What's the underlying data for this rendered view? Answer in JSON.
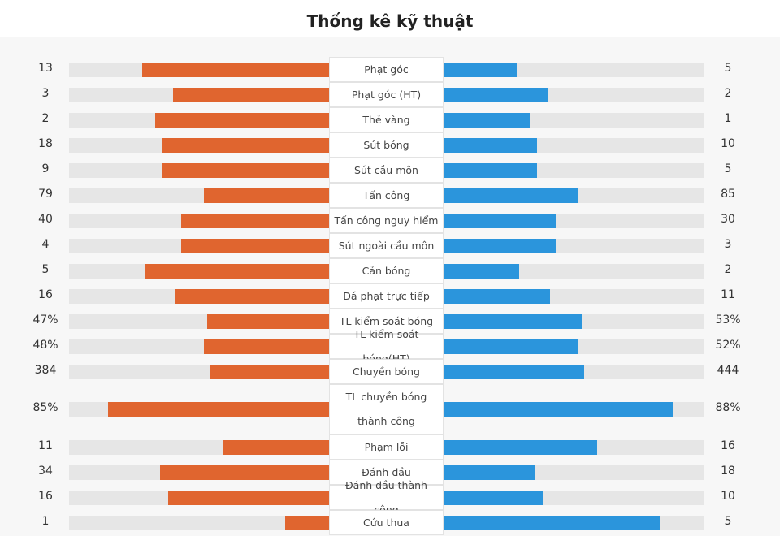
{
  "title": "Thống kê kỹ thuật",
  "colors": {
    "home_bar": "#e0652f",
    "away_bar": "#2b95dc",
    "track": "#e6e6e6"
  },
  "stats": [
    {
      "label": "Phạt góc",
      "home": "13",
      "away": "5",
      "home_fill": 0.72,
      "away_fill": 0.28
    },
    {
      "label": "Phạt góc (HT)",
      "home": "3",
      "away": "2",
      "home_fill": 0.6,
      "away_fill": 0.4
    },
    {
      "label": "Thẻ vàng",
      "home": "2",
      "away": "1",
      "home_fill": 0.67,
      "away_fill": 0.33
    },
    {
      "label": "Sút bóng",
      "home": "18",
      "away": "10",
      "home_fill": 0.64,
      "away_fill": 0.36
    },
    {
      "label": "Sút cầu môn",
      "home": "9",
      "away": "5",
      "home_fill": 0.64,
      "away_fill": 0.36
    },
    {
      "label": "Tấn công",
      "home": "79",
      "away": "85",
      "home_fill": 0.48,
      "away_fill": 0.52
    },
    {
      "label": "Tấn công nguy hiểm",
      "home": "40",
      "away": "30",
      "home_fill": 0.57,
      "away_fill": 0.43
    },
    {
      "label": "Sút ngoài cầu môn",
      "home": "4",
      "away": "3",
      "home_fill": 0.57,
      "away_fill": 0.43
    },
    {
      "label": "Cản bóng",
      "home": "5",
      "away": "2",
      "home_fill": 0.71,
      "away_fill": 0.29
    },
    {
      "label": "Đá phạt trực tiếp",
      "home": "16",
      "away": "11",
      "home_fill": 0.59,
      "away_fill": 0.41
    },
    {
      "label": "TL kiểm soát bóng",
      "home": "47%",
      "away": "53%",
      "home_fill": 0.47,
      "away_fill": 0.53
    },
    {
      "label": "TL kiểm soát bóng(HT)",
      "home": "48%",
      "away": "52%",
      "home_fill": 0.48,
      "away_fill": 0.52
    },
    {
      "label": "Chuyền bóng",
      "home": "384",
      "away": "444",
      "home_fill": 0.46,
      "away_fill": 0.54
    },
    {
      "label": "TL chuyền bóng thành công",
      "home": "85%",
      "away": "88%",
      "home_fill": 0.85,
      "away_fill": 0.88
    },
    {
      "label": "Phạm lỗi",
      "home": "11",
      "away": "16",
      "home_fill": 0.41,
      "away_fill": 0.59
    },
    {
      "label": "Đánh đầu",
      "home": "34",
      "away": "18",
      "home_fill": 0.65,
      "away_fill": 0.35
    },
    {
      "label": "Đánh đầu thành công",
      "home": "16",
      "away": "10",
      "home_fill": 0.62,
      "away_fill": 0.38
    },
    {
      "label": "Cứu thua",
      "home": "1",
      "away": "5",
      "home_fill": 0.17,
      "away_fill": 0.83
    }
  ]
}
